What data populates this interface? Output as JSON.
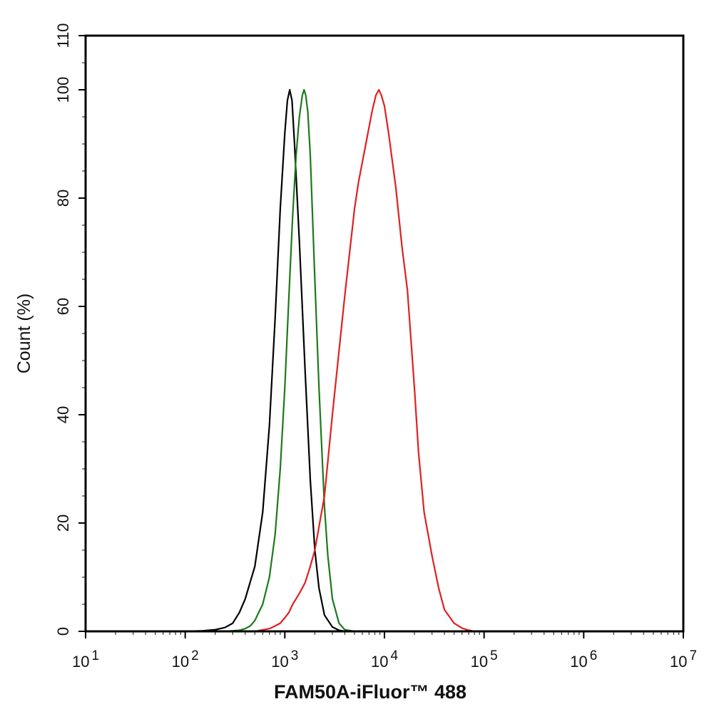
{
  "chart_data": {
    "type": "line",
    "xlabel": "FAM50A-iFluor™ 488",
    "ylabel": "Count  (%)",
    "xscale": "log",
    "xlim": [
      10,
      10000000
    ],
    "ylim": [
      0,
      110
    ],
    "x_ticks": [
      {
        "base": "10",
        "exp": "1"
      },
      {
        "base": "10",
        "exp": "2"
      },
      {
        "base": "10",
        "exp": "3"
      },
      {
        "base": "10",
        "exp": "4"
      },
      {
        "base": "10",
        "exp": "5"
      },
      {
        "base": "10",
        "exp": "6"
      },
      {
        "base": "10",
        "exp": "7"
      }
    ],
    "y_ticks": [
      "0",
      "20",
      "40",
      "60",
      "80",
      "100",
      "110"
    ],
    "legend": "none",
    "grid": false,
    "series": [
      {
        "color": "#000000",
        "x": [
          100,
          150,
          200,
          250,
          300,
          350,
          400,
          500,
          600,
          700,
          800,
          900,
          1000,
          1060,
          1120,
          1180,
          1250,
          1400,
          1600,
          1800,
          2000,
          2200,
          2500,
          3000,
          3500,
          4000
        ],
        "y": [
          0,
          0.1,
          0.3,
          0.7,
          1.5,
          3.5,
          6,
          12,
          22,
          38,
          58,
          78,
          92,
          98,
          100,
          98,
          90,
          72,
          48,
          28,
          15,
          8,
          3,
          0.8,
          0.2,
          0
        ]
      },
      {
        "color": "#1a7a1a",
        "x": [
          250,
          300,
          350,
          400,
          450,
          500,
          600,
          700,
          800,
          900,
          1000,
          1100,
          1200,
          1300,
          1400,
          1500,
          1560,
          1620,
          1700,
          1800,
          2000,
          2200,
          2500,
          2700,
          3000,
          3500,
          4000,
          5000
        ],
        "y": [
          0,
          0.1,
          0.2,
          0.5,
          1,
          2,
          5,
          10,
          18,
          30,
          45,
          62,
          77,
          88,
          95,
          99,
          100,
          99,
          96,
          88,
          65,
          45,
          23,
          14,
          6,
          1.5,
          0.3,
          0
        ]
      },
      {
        "color": "#e02020",
        "x": [
          500,
          700,
          800,
          900,
          1000,
          1100,
          1200,
          1400,
          1600,
          1800,
          2000,
          2500,
          3000,
          4000,
          5000,
          5500,
          6500,
          7500,
          8200,
          8800,
          9300,
          10000,
          11000,
          13000,
          15000,
          17000,
          20000,
          22000,
          25000,
          30000,
          35000,
          40000,
          50000,
          60000,
          70000,
          80000
        ],
        "y": [
          0,
          0.5,
          1,
          1.5,
          2.5,
          3.5,
          5,
          7,
          9,
          12,
          15,
          25,
          40,
          62,
          78,
          83,
          90,
          96,
          99,
          100,
          99,
          97,
          92,
          82,
          71,
          63,
          45,
          33,
          22,
          14,
          8,
          4,
          1.5,
          0.6,
          0.2,
          0
        ]
      }
    ]
  }
}
